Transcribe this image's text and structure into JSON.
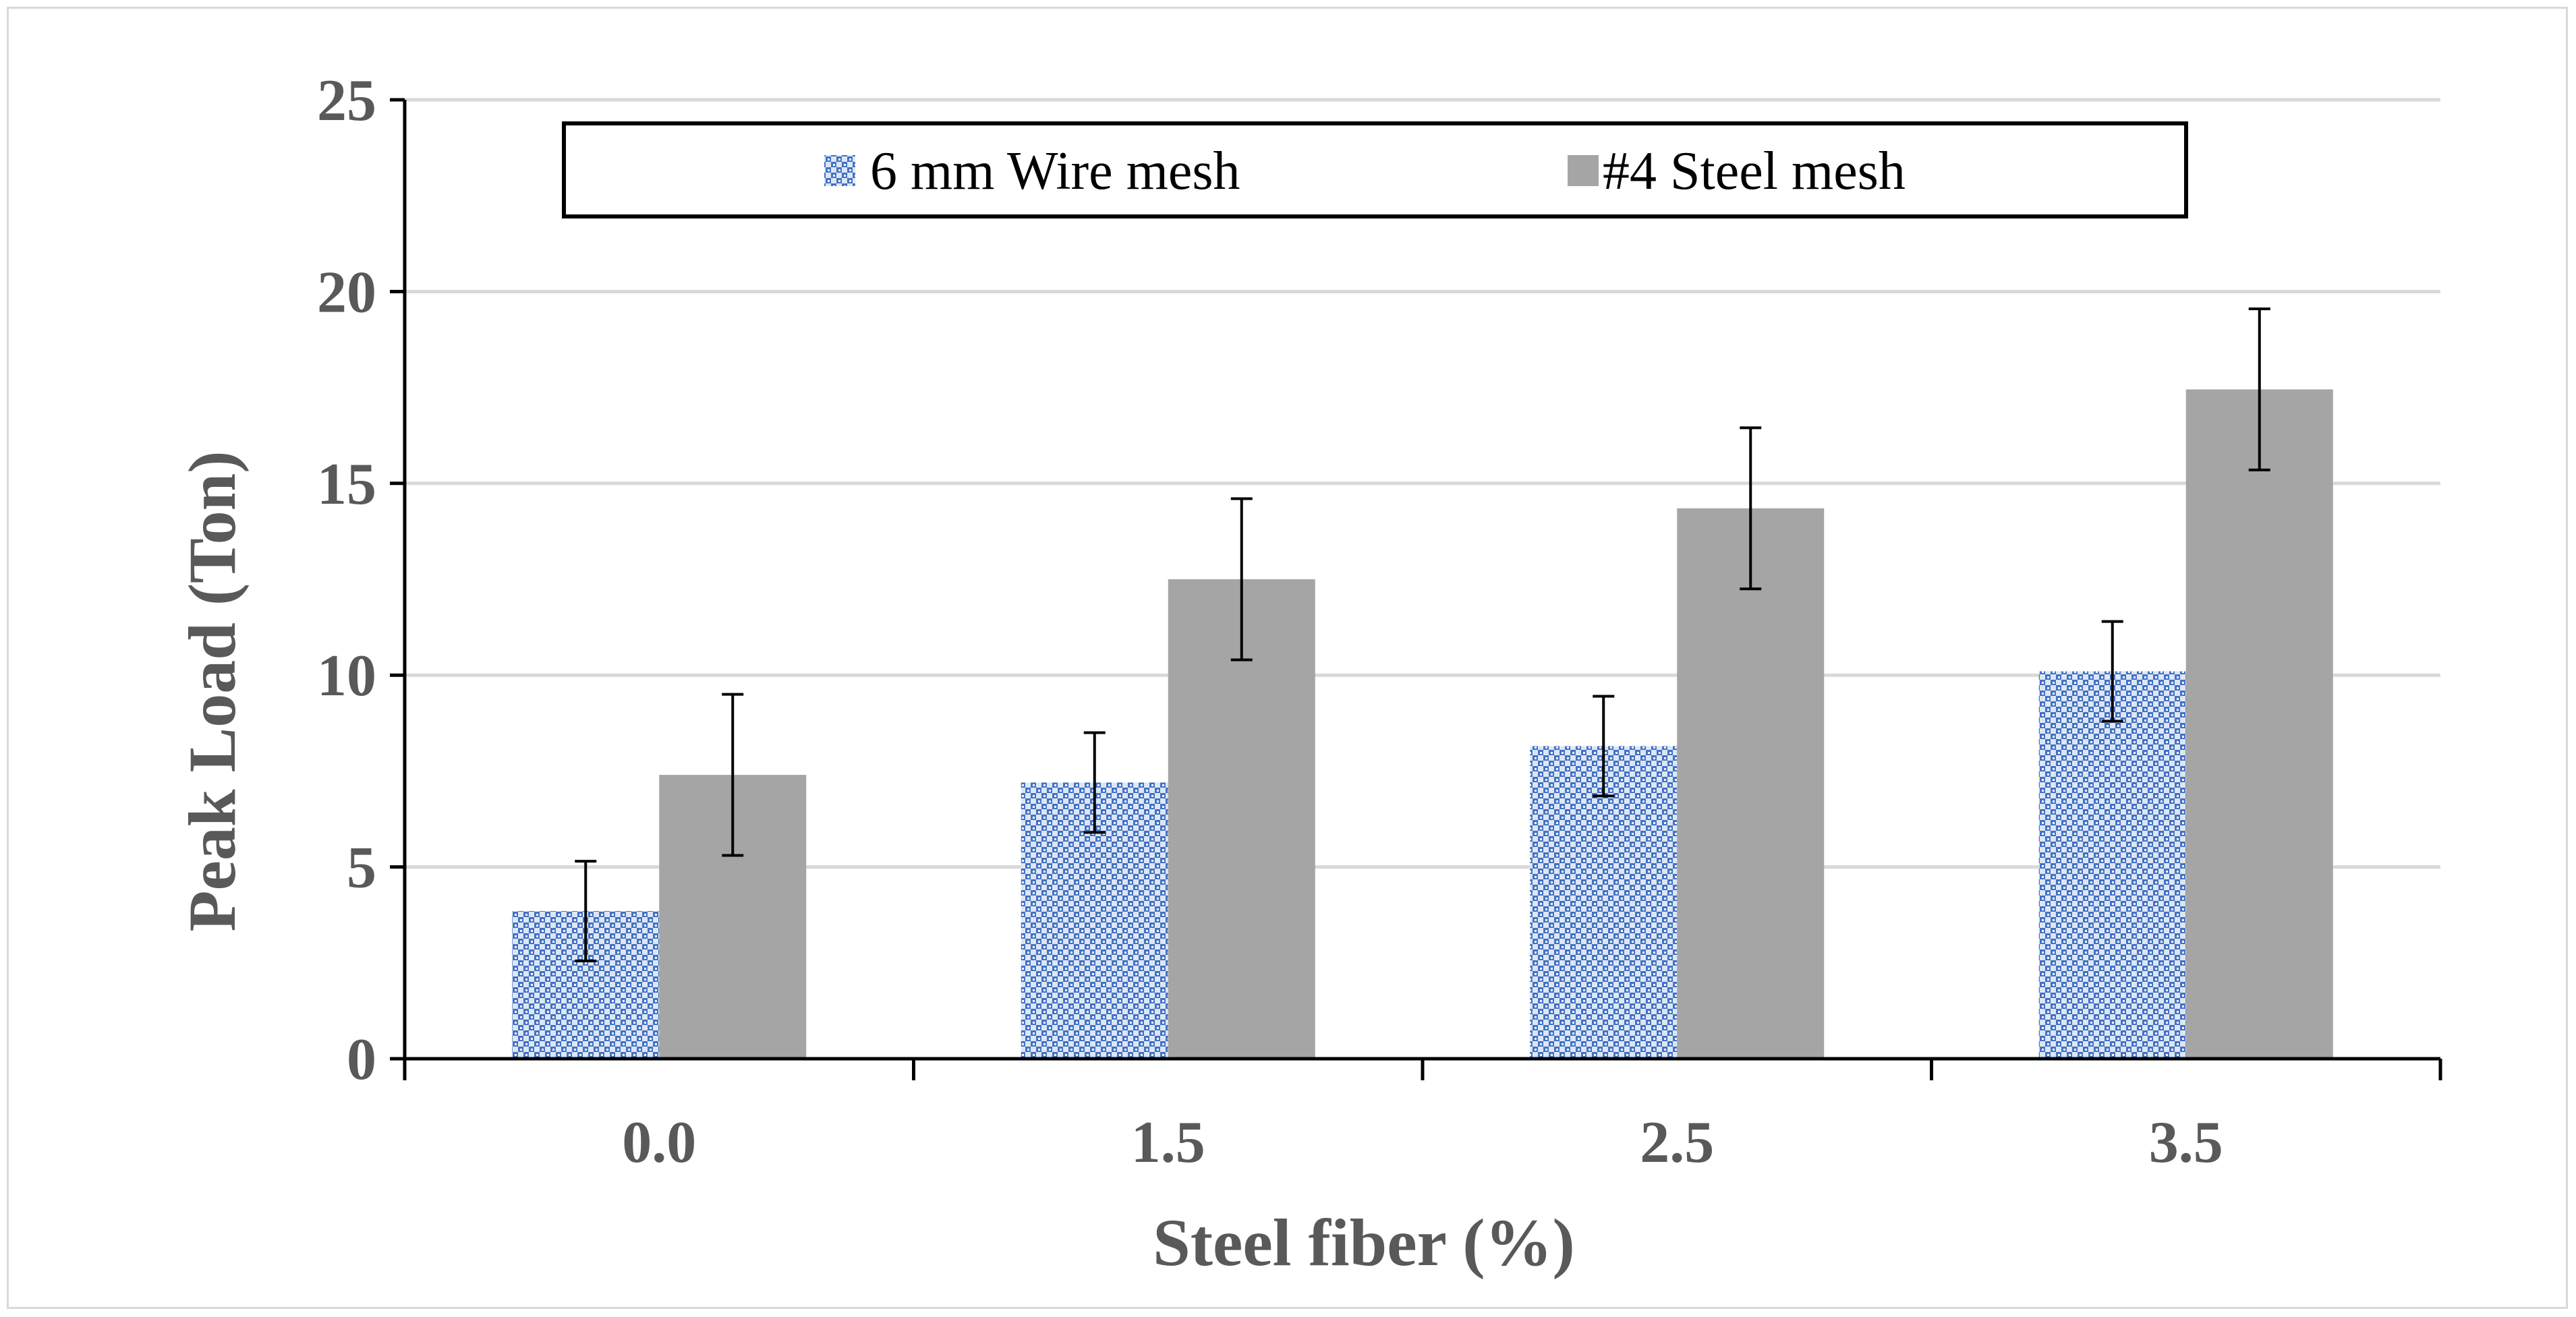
{
  "chart_data": {
    "type": "bar",
    "title": "",
    "xlabel": "Steel fiber (%)",
    "ylabel": "Peak Load (Ton)",
    "categories": [
      "0.0",
      "1.5",
      "2.5",
      "3.5"
    ],
    "ylim": [
      0,
      25
    ],
    "yticks": [
      "0",
      "5",
      "10",
      "15",
      "20",
      "25"
    ],
    "grid": true,
    "legend_position": "top",
    "series": [
      {
        "name": "6 mm Wire mesh",
        "color": "#4472c4",
        "pattern": "dotted-checker",
        "values": [
          3.85,
          7.2,
          8.15,
          10.1
        ],
        "error": [
          1.3,
          1.3,
          1.3,
          1.3
        ]
      },
      {
        "name": "#4 Steel mesh",
        "color": "#a5a5a5",
        "pattern": "solid",
        "values": [
          7.4,
          12.5,
          14.35,
          17.45
        ],
        "error": [
          2.1,
          2.1,
          2.1,
          2.1
        ]
      }
    ]
  }
}
